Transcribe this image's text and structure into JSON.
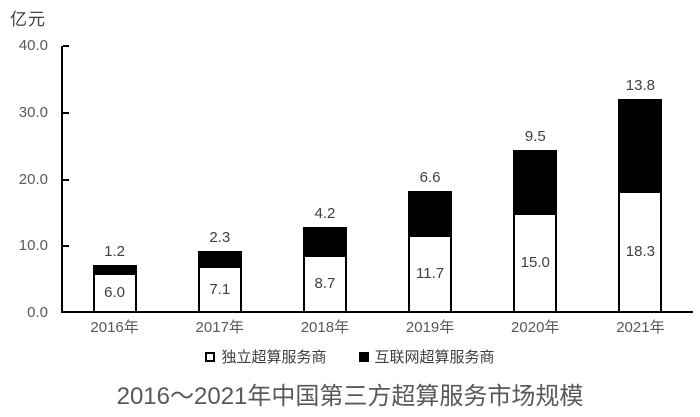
{
  "chart_data": {
    "type": "bar",
    "stacked": true,
    "title": "2016～2021年中国第三方超算服务市场规模",
    "unit_label": "亿元",
    "categories": [
      "2016年",
      "2017年",
      "2018年",
      "2019年",
      "2020年",
      "2021年"
    ],
    "series": [
      {
        "name": "独立超算服务商",
        "color": "#ffffff",
        "values": [
          6.0,
          7.1,
          8.7,
          11.7,
          15.0,
          18.3
        ]
      },
      {
        "name": "互联网超算服务商",
        "color": "#000000",
        "values": [
          1.2,
          2.3,
          4.2,
          6.6,
          9.5,
          13.8
        ]
      }
    ],
    "ylim": [
      0,
      40
    ],
    "y_ticks": [
      "0.0",
      "10.0",
      "20.0",
      "30.0",
      "40.0"
    ],
    "value_label_format": "one_decimal",
    "legend_position": "bottom",
    "grid": false,
    "axis_color": "#000000",
    "label_color": "#404040",
    "tick_label_color": "#595959"
  }
}
